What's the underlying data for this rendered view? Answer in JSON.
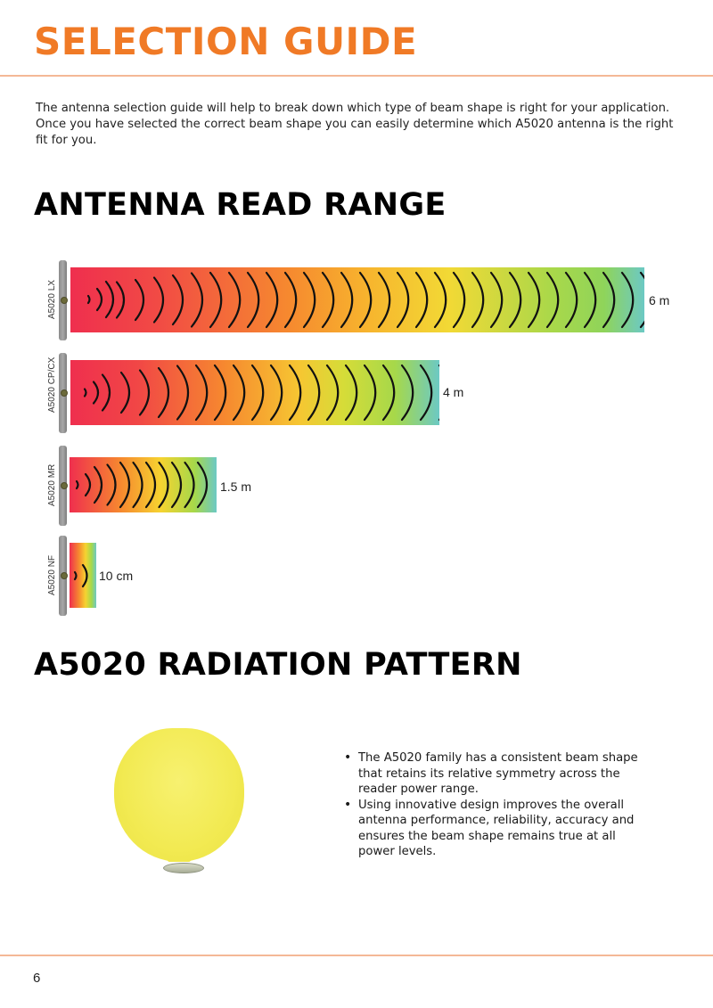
{
  "header": {
    "title": "SELECTION GUIDE",
    "accent_color": "#f07a26"
  },
  "intro": {
    "text": "The antenna selection guide will help to break down which type of beam shape is right for your application. Once you have selected the correct beam shape you can easily determine which A5020 antenna is the right fit for you."
  },
  "read_range": {
    "heading": "ANTENNA READ RANGE",
    "items": [
      {
        "model": "A5020 LX",
        "range_label": "6 m",
        "range_m": 6
      },
      {
        "model": "A5020 CP/CX",
        "range_label": "4 m",
        "range_m": 4
      },
      {
        "model": "A5020 MR",
        "range_label": "1.5 m",
        "range_m": 1.5
      },
      {
        "model": "A5020 NF",
        "range_label": "10 cm",
        "range_m": 0.1
      }
    ],
    "gradient_colors": [
      "#ef2f4e",
      "#f79a2e",
      "#f6d330",
      "#a6d84a",
      "#5bc7cf"
    ]
  },
  "radiation": {
    "heading": "A5020 RADIATION PATTERN",
    "bullets": [
      "The A5020 family has a consistent beam shape that retains its relative symmetry across the reader power range.",
      "Using innovative design improves the overall antenna performance, reliability, accuracy and ensures the beam shape remains true at all power levels."
    ]
  },
  "footer": {
    "page_number": "6"
  }
}
